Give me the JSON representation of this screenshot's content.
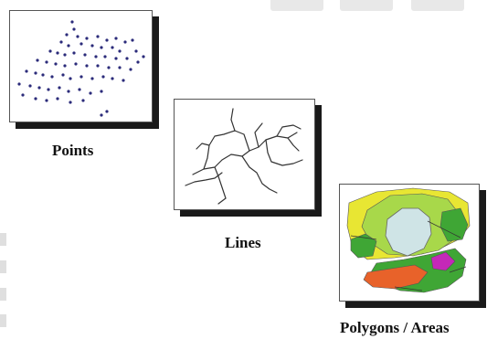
{
  "diagram": {
    "panels": [
      {
        "id": "points",
        "label": "Points"
      },
      {
        "id": "lines",
        "label": "Lines"
      },
      {
        "id": "polygons",
        "label": "Polygons / Areas"
      }
    ]
  },
  "colors": {
    "point": "#2b2b7a",
    "line": "#333333",
    "shadow": "#1a1a1a",
    "yellow": "#e8e633",
    "light_green": "#a8d84a",
    "green": "#3fa635",
    "lake": "#cfe4e6",
    "orange": "#e8622a",
    "magenta": "#c428b8"
  }
}
